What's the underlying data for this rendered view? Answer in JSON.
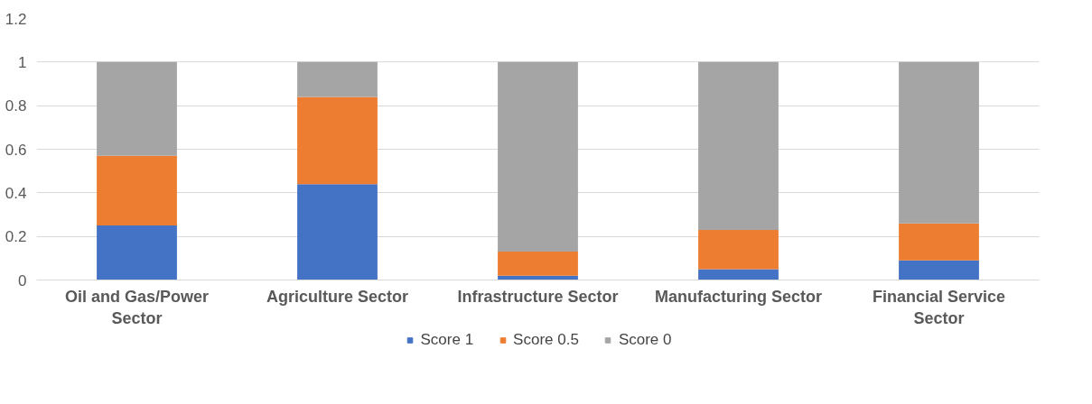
{
  "chart_data": {
    "type": "bar",
    "stacked": true,
    "categories": [
      "Oil and Gas/Power Sector",
      "Agriculture Sector",
      "Infrastructure Sector",
      "Manufacturing Sector",
      "Financial Service Sector"
    ],
    "series": [
      {
        "name": "Score 1",
        "color": "#4472c4",
        "values": [
          0.25,
          0.44,
          0.02,
          0.05,
          0.09
        ]
      },
      {
        "name": "Score 0.5",
        "color": "#ed7d31",
        "values": [
          0.32,
          0.4,
          0.11,
          0.18,
          0.17
        ]
      },
      {
        "name": "Score 0",
        "color": "#a5a5a5",
        "values": [
          0.43,
          0.16,
          0.87,
          0.77,
          0.74
        ]
      }
    ],
    "ylim": [
      0,
      1.2
    ],
    "yticks": [
      0,
      0.2,
      0.4,
      0.6,
      0.8,
      1,
      1.2
    ],
    "grid": "y",
    "legend": "bottom"
  }
}
